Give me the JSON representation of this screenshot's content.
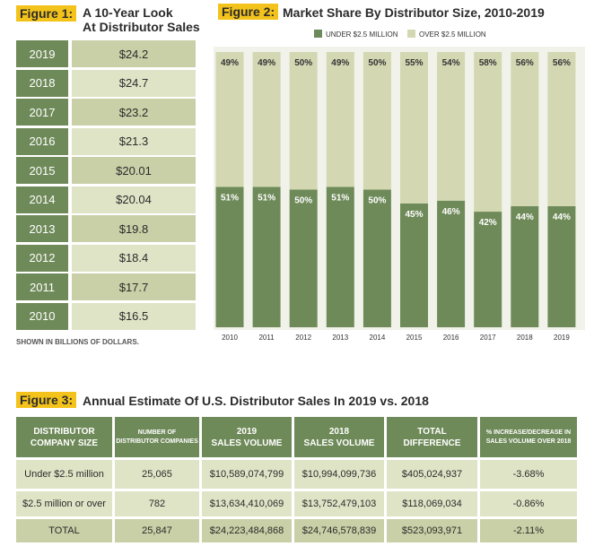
{
  "figure1": {
    "label": "Figure 1:",
    "title": [
      "A 10-Year Look",
      "At Distributor Sales"
    ],
    "rows": [
      [
        "2019",
        "$24.2"
      ],
      [
        "2018",
        "$24.7"
      ],
      [
        "2017",
        "$23.2"
      ],
      [
        "2016",
        "$21.3"
      ],
      [
        "2015",
        "$20.01"
      ],
      [
        "2014",
        "$20.04"
      ],
      [
        "2013",
        "$19.8"
      ],
      [
        "2012",
        "$18.4"
      ],
      [
        "2011",
        "$17.7"
      ],
      [
        "2010",
        "$16.5"
      ]
    ],
    "note": "SHOWN IN BILLIONS OF DOLLARS."
  },
  "chart_data": {
    "type": "bar",
    "stacked": true,
    "label": "Figure 2:",
    "title": "Market Share By Distributor Size, 2010-2019",
    "categories": [
      "2010",
      "2011",
      "2012",
      "2013",
      "2014",
      "2015",
      "2016",
      "2017",
      "2018",
      "2019"
    ],
    "series": [
      {
        "name": "UNDER $2.5 MILLION",
        "color": "#6f8a59",
        "values": [
          51,
          51,
          50,
          51,
          50,
          45,
          46,
          42,
          44,
          44
        ],
        "value_labels": [
          "51%",
          "51%",
          "50%",
          "51%",
          "50%",
          "45%",
          "46%",
          "42%",
          "44%",
          "44%"
        ]
      },
      {
        "name": "OVER $2.5 MILLION",
        "color": "#d3d8b3",
        "values": [
          49,
          49,
          50,
          49,
          50,
          55,
          54,
          58,
          56,
          56
        ],
        "value_labels": [
          "49%",
          "49%",
          "50%",
          "49%",
          "50%",
          "55%",
          "54%",
          "58%",
          "56%",
          "56%"
        ]
      }
    ],
    "ylim": [
      0,
      100
    ]
  },
  "figure3": {
    "label": "Figure 3:",
    "title": "Annual Estimate Of U.S. Distributor Sales In 2019 vs. 2018",
    "header": [
      [
        "DISTRIBUTOR",
        "COMPANY SIZE"
      ],
      [
        "NUMBER OF",
        "DISTRIBUTOR COMPANIES"
      ],
      [
        "2019",
        "SALES VOLUME"
      ],
      [
        "2018",
        "SALES VOLUME"
      ],
      [
        "TOTAL",
        "DIFFERENCE"
      ],
      [
        "% INCREASE/DECREASE IN",
        "SALES VOLUME OVER 2018"
      ]
    ],
    "rows": [
      [
        "Under $2.5 million",
        "25,065",
        "$10,589,074,799",
        "$10,994,099,736",
        "$405,024,937",
        "-3.68%"
      ],
      [
        "$2.5 million or over",
        "782",
        "$13,634,410,069",
        "$13,752,479,103",
        "$118,069,034",
        "-0.86%"
      ],
      [
        "TOTAL",
        "25,847",
        "$24,223,484,868",
        "$24,746,578,839",
        "$523,093,971",
        "-2.11%"
      ]
    ]
  }
}
